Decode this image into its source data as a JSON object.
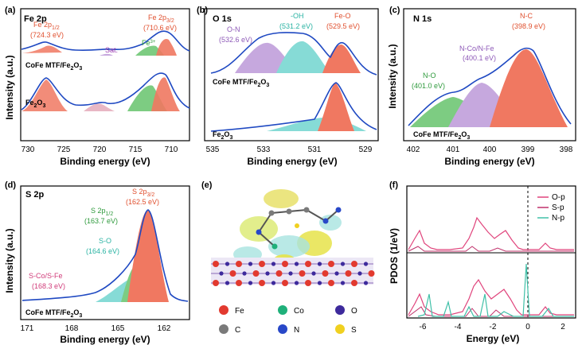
{
  "colors": {
    "fit": "#1f49c2",
    "raw": "#8a8a8a",
    "red": "#f07861",
    "green": "#7dcc82",
    "purple": "#c6a8de",
    "cyan": "#86dbd6",
    "pink": "#e8b7c4",
    "blue_dark": "#2a4aa5"
  },
  "panel_a": {
    "tag": "(a)",
    "title": "Fe 2p",
    "ylabel": "Intensity (a.u.)",
    "xlabel": "Binding energy (eV)",
    "ticks": [
      "730",
      "725",
      "720",
      "715",
      "710"
    ],
    "peak1": "Fe 2p",
    "peak1_sub": "1/2",
    "peak1_val": "(724.3 eV)",
    "peak2": "Fe 2p",
    "peak2_sub": "3/2",
    "peak2_val": "(710.6 eV)",
    "sat": "Sat.",
    "fe3": "Fe",
    "fe3_sup": "3+",
    "sample_top": "CoFe MTF/Fe",
    "sample_top_sub1": "2",
    "sample_top_o": "O",
    "sample_top_sub2": "3",
    "sample_bot": "Fe",
    "sample_bot_sub1": "2",
    "sample_bot_o": "O",
    "sample_bot_sub2": "3"
  },
  "panel_b": {
    "tag": "(b)",
    "title": "O 1s",
    "xlabel": "Binding energy (eV)",
    "ticks": [
      "535",
      "533",
      "531",
      "529"
    ],
    "on": "O-N",
    "on_val": "(532.6 eV)",
    "oh": "-OH",
    "oh_val": "(531.2 eV)",
    "feo": "Fe-O",
    "feo_val": "(529.5 eV)",
    "sample_top": "CoFe MTF/Fe",
    "sample_top_sub1": "2",
    "sample_top_o": "O",
    "sample_top_sub2": "3",
    "sample_bot": "Fe",
    "sample_bot_sub1": "2",
    "sample_bot_o": "O",
    "sample_bot_sub2": "3"
  },
  "panel_c": {
    "tag": "(c)",
    "title": "N 1s",
    "ylabel": "Intensity (a.u.)",
    "xlabel": "Binding energy (eV)",
    "ticks": [
      "402",
      "401",
      "400",
      "399",
      "398"
    ],
    "nc": "N-C",
    "nc_val": "(398.9 eV)",
    "ncofe": "N-Co/N-Fe",
    "ncofe_val": "(400.1 eV)",
    "no": "N-O",
    "no_val": "(401.0 eV)",
    "sample": "CoFe MTF/Fe",
    "sample_sub1": "2",
    "sample_o": "O",
    "sample_sub2": "3"
  },
  "panel_d": {
    "tag": "(d)",
    "title": "S 2p",
    "ylabel": "Intensity (a.u.)",
    "xlabel": "Binding energy (eV)",
    "ticks": [
      "171",
      "168",
      "165",
      "162"
    ],
    "s32": "S 2p",
    "s32_sub": "3/2",
    "s32_val": "(162.5 eV)",
    "s12": "S 2p",
    "s12_sub": "1/2",
    "s12_val": "(163.7 eV)",
    "so": "S-O",
    "so_val": "(164.6 eV)",
    "scofe": "S-Co/S-Fe",
    "scofe_val": "(168.3 eV)",
    "sample": "CoFe MTF/Fe",
    "sample_sub1": "2",
    "sample_o": "O",
    "sample_sub2": "3"
  },
  "panel_e": {
    "tag": "(e)",
    "legend": [
      {
        "label": "Fe",
        "color": "#e23a2f"
      },
      {
        "label": "Co",
        "color": "#1fb07a"
      },
      {
        "label": "O",
        "color": "#3d2a9c"
      },
      {
        "label": "C",
        "color": "#7a7a7a"
      },
      {
        "label": "N",
        "color": "#2848c8"
      },
      {
        "label": "S",
        "color": "#f0d020"
      }
    ]
  },
  "panel_f": {
    "tag": "(f)",
    "ylabel": "PDOS (1/eV)",
    "xlabel": "Energy (eV)",
    "ticks": [
      "-6",
      "-4",
      "-2",
      "0",
      "2"
    ],
    "legend": [
      {
        "label": "O-p",
        "color": "#e0447c"
      },
      {
        "label": "S-p",
        "color": "#c0306a"
      },
      {
        "label": "N-p",
        "color": "#40c0a8"
      }
    ]
  }
}
